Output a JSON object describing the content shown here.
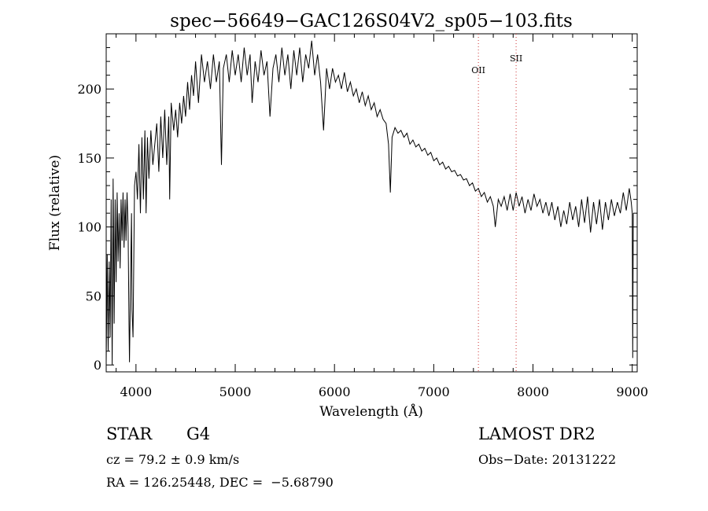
{
  "chart_data": {
    "type": "line",
    "title": "spec−56649−GAC126S04V2_sp05−103.fits",
    "xlabel": "Wavelength (Å)",
    "ylabel": "Flux (relative)",
    "xlim": [
      3700,
      9050
    ],
    "ylim": [
      -5,
      240
    ],
    "x_ticks": [
      4000,
      5000,
      6000,
      7000,
      8000,
      9000
    ],
    "y_ticks": [
      0,
      50,
      100,
      150,
      200
    ],
    "grid": false,
    "series": [
      {
        "points": [
          [
            3700,
            2
          ],
          [
            3710,
            80
          ],
          [
            3720,
            10
          ],
          [
            3730,
            75
          ],
          [
            3740,
            20
          ],
          [
            3750,
            120
          ],
          [
            3760,
            0
          ],
          [
            3770,
            135
          ],
          [
            3780,
            30
          ],
          [
            3790,
            120
          ],
          [
            3800,
            60
          ],
          [
            3810,
            125
          ],
          [
            3820,
            75
          ],
          [
            3830,
            110
          ],
          [
            3840,
            70
          ],
          [
            3850,
            120
          ],
          [
            3860,
            90
          ],
          [
            3870,
            125
          ],
          [
            3880,
            85
          ],
          [
            3890,
            120
          ],
          [
            3900,
            90
          ],
          [
            3910,
            125
          ],
          [
            3920,
            100
          ],
          [
            3930,
            30
          ],
          [
            3935,
            2
          ],
          [
            3945,
            60
          ],
          [
            3955,
            110
          ],
          [
            3960,
            40
          ],
          [
            3970,
            20
          ],
          [
            3985,
            130
          ],
          [
            4000,
            140
          ],
          [
            4015,
            120
          ],
          [
            4030,
            160
          ],
          [
            4045,
            110
          ],
          [
            4060,
            165
          ],
          [
            4075,
            120
          ],
          [
            4090,
            170
          ],
          [
            4102,
            110
          ],
          [
            4115,
            165
          ],
          [
            4130,
            135
          ],
          [
            4150,
            170
          ],
          [
            4170,
            145
          ],
          [
            4190,
            160
          ],
          [
            4210,
            175
          ],
          [
            4230,
            140
          ],
          [
            4250,
            180
          ],
          [
            4270,
            150
          ],
          [
            4290,
            185
          ],
          [
            4310,
            145
          ],
          [
            4330,
            180
          ],
          [
            4340,
            120
          ],
          [
            4355,
            190
          ],
          [
            4380,
            170
          ],
          [
            4400,
            185
          ],
          [
            4420,
            165
          ],
          [
            4440,
            190
          ],
          [
            4460,
            175
          ],
          [
            4480,
            195
          ],
          [
            4500,
            180
          ],
          [
            4520,
            205
          ],
          [
            4540,
            185
          ],
          [
            4560,
            210
          ],
          [
            4580,
            195
          ],
          [
            4600,
            220
          ],
          [
            4630,
            190
          ],
          [
            4660,
            225
          ],
          [
            4690,
            205
          ],
          [
            4720,
            220
          ],
          [
            4750,
            200
          ],
          [
            4780,
            225
          ],
          [
            4810,
            205
          ],
          [
            4840,
            220
          ],
          [
            4861,
            145
          ],
          [
            4880,
            215
          ],
          [
            4910,
            225
          ],
          [
            4940,
            205
          ],
          [
            4970,
            228
          ],
          [
            5000,
            210
          ],
          [
            5030,
            225
          ],
          [
            5060,
            205
          ],
          [
            5090,
            230
          ],
          [
            5120,
            210
          ],
          [
            5150,
            225
          ],
          [
            5170,
            190
          ],
          [
            5200,
            220
          ],
          [
            5230,
            205
          ],
          [
            5260,
            228
          ],
          [
            5290,
            210
          ],
          [
            5320,
            220
          ],
          [
            5350,
            180
          ],
          [
            5380,
            215
          ],
          [
            5410,
            225
          ],
          [
            5440,
            205
          ],
          [
            5470,
            230
          ],
          [
            5500,
            210
          ],
          [
            5530,
            225
          ],
          [
            5560,
            200
          ],
          [
            5590,
            228
          ],
          [
            5620,
            210
          ],
          [
            5650,
            230
          ],
          [
            5680,
            205
          ],
          [
            5710,
            225
          ],
          [
            5740,
            215
          ],
          [
            5770,
            235
          ],
          [
            5800,
            210
          ],
          [
            5830,
            225
          ],
          [
            5860,
            205
          ],
          [
            5890,
            170
          ],
          [
            5920,
            215
          ],
          [
            5950,
            200
          ],
          [
            5980,
            215
          ],
          [
            6010,
            205
          ],
          [
            6040,
            210
          ],
          [
            6070,
            200
          ],
          [
            6100,
            212
          ],
          [
            6130,
            198
          ],
          [
            6160,
            205
          ],
          [
            6190,
            195
          ],
          [
            6220,
            200
          ],
          [
            6250,
            190
          ],
          [
            6280,
            198
          ],
          [
            6310,
            188
          ],
          [
            6340,
            195
          ],
          [
            6370,
            185
          ],
          [
            6400,
            190
          ],
          [
            6430,
            180
          ],
          [
            6460,
            185
          ],
          [
            6490,
            178
          ],
          [
            6520,
            175
          ],
          [
            6545,
            160
          ],
          [
            6563,
            125
          ],
          [
            6580,
            165
          ],
          [
            6610,
            172
          ],
          [
            6640,
            168
          ],
          [
            6670,
            170
          ],
          [
            6700,
            165
          ],
          [
            6730,
            168
          ],
          [
            6760,
            160
          ],
          [
            6790,
            163
          ],
          [
            6820,
            158
          ],
          [
            6850,
            160
          ],
          [
            6880,
            155
          ],
          [
            6910,
            157
          ],
          [
            6940,
            152
          ],
          [
            6970,
            154
          ],
          [
            7000,
            148
          ],
          [
            7030,
            150
          ],
          [
            7060,
            145
          ],
          [
            7090,
            147
          ],
          [
            7120,
            142
          ],
          [
            7150,
            144
          ],
          [
            7180,
            140
          ],
          [
            7210,
            141
          ],
          [
            7240,
            137
          ],
          [
            7270,
            138
          ],
          [
            7300,
            134
          ],
          [
            7330,
            135
          ],
          [
            7360,
            130
          ],
          [
            7390,
            132
          ],
          [
            7420,
            126
          ],
          [
            7450,
            128
          ],
          [
            7480,
            122
          ],
          [
            7510,
            125
          ],
          [
            7540,
            118
          ],
          [
            7570,
            122
          ],
          [
            7600,
            115
          ],
          [
            7620,
            100
          ],
          [
            7650,
            120
          ],
          [
            7680,
            115
          ],
          [
            7710,
            122
          ],
          [
            7740,
            112
          ],
          [
            7770,
            124
          ],
          [
            7800,
            112
          ],
          [
            7830,
            125
          ],
          [
            7860,
            115
          ],
          [
            7890,
            122
          ],
          [
            7920,
            110
          ],
          [
            7950,
            120
          ],
          [
            7980,
            112
          ],
          [
            8010,
            124
          ],
          [
            8040,
            115
          ],
          [
            8070,
            120
          ],
          [
            8100,
            110
          ],
          [
            8130,
            118
          ],
          [
            8160,
            108
          ],
          [
            8190,
            118
          ],
          [
            8220,
            105
          ],
          [
            8250,
            115
          ],
          [
            8280,
            100
          ],
          [
            8310,
            112
          ],
          [
            8340,
            102
          ],
          [
            8370,
            118
          ],
          [
            8400,
            105
          ],
          [
            8430,
            115
          ],
          [
            8460,
            100
          ],
          [
            8490,
            120
          ],
          [
            8520,
            103
          ],
          [
            8550,
            122
          ],
          [
            8580,
            96
          ],
          [
            8610,
            118
          ],
          [
            8640,
            102
          ],
          [
            8670,
            120
          ],
          [
            8700,
            98
          ],
          [
            8730,
            118
          ],
          [
            8760,
            105
          ],
          [
            8790,
            120
          ],
          [
            8820,
            108
          ],
          [
            8850,
            118
          ],
          [
            8880,
            110
          ],
          [
            8910,
            125
          ],
          [
            8940,
            112
          ],
          [
            8970,
            128
          ],
          [
            8990,
            118
          ],
          [
            9000,
            110
          ],
          [
            9005,
            5
          ],
          [
            9010,
            110
          ]
        ]
      }
    ],
    "emission_lines": [
      {
        "label": "OII",
        "x": 7450,
        "color": "#cc3333"
      },
      {
        "label": "SII",
        "x": 7830,
        "color": "#cc3333"
      }
    ]
  },
  "info": {
    "object_class": "STAR",
    "subclass": "G4",
    "survey": "LAMOST DR2",
    "velocity": "cz = 79.2 ± 0.9 km/s",
    "obs_date": "Obs−Date: 20131222",
    "coords": "RA = 126.25448, DEC =  −5.68790"
  }
}
